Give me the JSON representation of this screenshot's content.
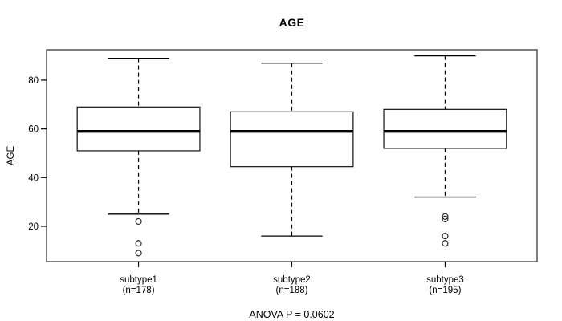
{
  "figure": {
    "title": "AGE",
    "ylabel": "AGE",
    "footer": "ANOVA P = 0.0602"
  },
  "chart_data": {
    "type": "boxplot",
    "title": "AGE",
    "xlabel": "",
    "ylabel": "AGE",
    "annotation": "ANOVA P = 0.0602",
    "ylim": [
      5.5,
      92.5
    ],
    "yticks": [
      20,
      40,
      60,
      80
    ],
    "grid": false,
    "legend": "none",
    "categories": [
      "subtype1",
      "subtype2",
      "subtype3"
    ],
    "groups": [
      {
        "label": "subtype1",
        "n_label": "(n=178)",
        "n": 178,
        "whisker_low": 25,
        "q1": 51,
        "median": 59,
        "q3": 69,
        "whisker_high": 89,
        "outliers": [
          22,
          13,
          9
        ]
      },
      {
        "label": "subtype2",
        "n_label": "(n=188)",
        "n": 188,
        "whisker_low": 16,
        "q1": 44.5,
        "median": 59,
        "q3": 67,
        "whisker_high": 87,
        "outliers": []
      },
      {
        "label": "subtype3",
        "n_label": "(n=195)",
        "n": 195,
        "whisker_low": 32,
        "q1": 52,
        "median": 59,
        "q3": 68,
        "whisker_high": 90,
        "outliers": [
          24,
          23,
          16,
          13
        ]
      }
    ],
    "colors": {
      "line": "#000000",
      "frame": "#555555",
      "background": "#ffffff"
    }
  }
}
